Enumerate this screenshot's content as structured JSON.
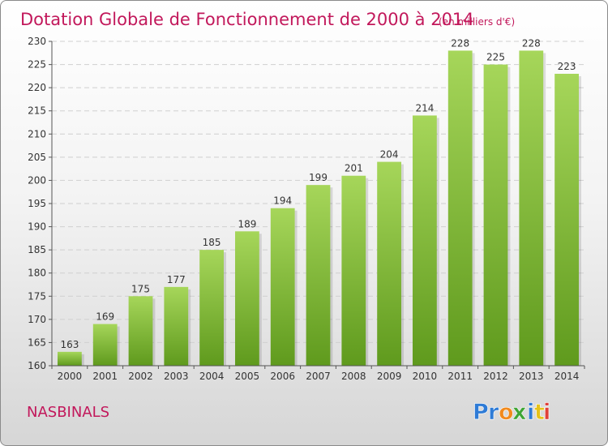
{
  "chart_data": {
    "type": "bar",
    "title": "Dotation Globale de Fonctionnement de 2000 à 2014",
    "subtitle": "(en milliers d'€)",
    "categories": [
      "2000",
      "2001",
      "2002",
      "2003",
      "2004",
      "2005",
      "2006",
      "2007",
      "2008",
      "2009",
      "2010",
      "2011",
      "2012",
      "2013",
      "2014"
    ],
    "values": [
      163,
      169,
      175,
      177,
      185,
      189,
      194,
      199,
      201,
      204,
      214,
      228,
      225,
      228,
      223
    ],
    "ylim": [
      160,
      230
    ],
    "yticks": [
      160,
      165,
      170,
      175,
      180,
      185,
      190,
      195,
      200,
      205,
      210,
      215,
      220,
      225,
      230
    ],
    "xlabel": "",
    "ylabel": "",
    "grid": true,
    "bar_color": "#7ab82f",
    "bar_color_light": "#a6d65a",
    "bar_color_dark": "#5f9a1d"
  },
  "place_name": "NASBINALS",
  "logo": {
    "name": "proxiti-logo",
    "letters": [
      {
        "char": "P",
        "color": "#2e7bd6"
      },
      {
        "char": "r",
        "color": "#2e7bd6"
      },
      {
        "char": "o",
        "color": "#f18a1d"
      },
      {
        "char": "x",
        "color": "#3fa535"
      },
      {
        "char": "i",
        "color": "#2e7bd6"
      },
      {
        "char": "t",
        "color": "#e6c21a"
      },
      {
        "char": "i",
        "color": "#e0413a"
      }
    ]
  }
}
